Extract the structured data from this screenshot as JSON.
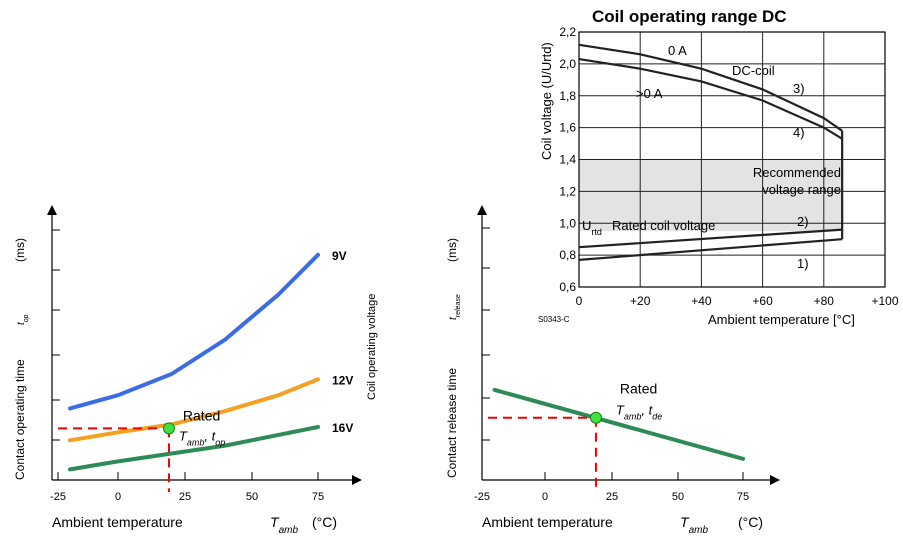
{
  "chart_data": [
    {
      "id": "operating",
      "type": "line",
      "title": "",
      "xlabel": "Ambient temperature",
      "xlabel_symbol": "Tamb",
      "xlabel_unit": "(°C)",
      "ylabel": "Contact operating time",
      "ylabel_symbol": "top",
      "ylabel_unit": "(ms)",
      "right_label": "Coil operating voltage",
      "x_ticks": [
        "-25",
        "0",
        "25",
        "50",
        "75"
      ],
      "xlim": [
        -25,
        80
      ],
      "ylim": [
        0,
        1
      ],
      "series": [
        {
          "name": "9V",
          "color": "#3c6be6",
          "x": [
            -20,
            0,
            20,
            40,
            60,
            75
          ],
          "y": [
            0.27,
            0.32,
            0.4,
            0.53,
            0.7,
            0.85
          ]
        },
        {
          "name": "12V",
          "color": "#f5a020",
          "x": [
            -20,
            0,
            20,
            40,
            60,
            75
          ],
          "y": [
            0.15,
            0.18,
            0.21,
            0.26,
            0.32,
            0.38
          ]
        },
        {
          "name": "16V",
          "color": "#2e8b57",
          "x": [
            -20,
            0,
            20,
            40,
            60,
            75
          ],
          "y": [
            0.04,
            0.07,
            0.1,
            0.13,
            0.17,
            0.2
          ]
        }
      ],
      "marker": {
        "x": 19,
        "y": 0.195,
        "label": "Rated",
        "sublabel": "Tamb, top"
      }
    },
    {
      "id": "release",
      "type": "line",
      "title": "",
      "xlabel": "Ambient temperature",
      "xlabel_symbol": "Tamb",
      "xlabel_unit": "(°C)",
      "ylabel": "Contact release time",
      "ylabel_symbol": "trelease",
      "ylabel_unit": "(ms)",
      "x_ticks": [
        "-25",
        "0",
        "25",
        "50",
        "75"
      ],
      "xlim": [
        -25,
        80
      ],
      "ylim": [
        0,
        1
      ],
      "series": [
        {
          "name": "",
          "color": "#2e8b57",
          "x": [
            -20,
            75
          ],
          "y": [
            0.34,
            0.08
          ]
        }
      ],
      "marker": {
        "x": 19,
        "y": 0.235,
        "label": "Rated",
        "sublabel": "Tamb, tde"
      }
    },
    {
      "id": "coil",
      "type": "line",
      "title": "Coil operating range DC",
      "xlabel": "Ambient temperature [°C]",
      "ylabel": "Coil voltage (U/Urtd)",
      "code": "S0343-C",
      "x_ticks": [
        "0",
        "+20",
        "+40",
        "+60",
        "+80",
        "+100"
      ],
      "y_ticks": [
        "0,6",
        "0,8",
        "1,0",
        "1,2",
        "1,4",
        "1,6",
        "1,8",
        "2,0",
        "2,2"
      ],
      "xlim": [
        0,
        100
      ],
      "ylim": [
        0.6,
        2.2
      ],
      "recommended_band": [
        0.95,
        1.4
      ],
      "series": [
        {
          "name": "0 A",
          "x": [
            0,
            20,
            40,
            60,
            80,
            86
          ],
          "y": [
            2.12,
            2.06,
            1.97,
            1.84,
            1.66,
            1.58
          ]
        },
        {
          "name": ">0 A",
          "x": [
            0,
            20,
            40,
            60,
            80,
            86
          ],
          "y": [
            2.03,
            1.97,
            1.89,
            1.77,
            1.6,
            1.53
          ]
        },
        {
          "name": "1)",
          "x": [
            0,
            86
          ],
          "y": [
            0.77,
            0.9
          ]
        },
        {
          "name": "2)",
          "x": [
            0,
            86
          ],
          "y": [
            0.85,
            0.96
          ]
        }
      ],
      "vertical_limit_x": 86,
      "annotations": [
        "0 A",
        "DC-coil",
        "3)",
        ">0 A",
        "4)",
        "Recommended",
        "voltage range",
        "Rated coil voltage",
        "2)",
        "1)"
      ],
      "urtd": "U",
      "urtd_sub": "rtd"
    }
  ]
}
